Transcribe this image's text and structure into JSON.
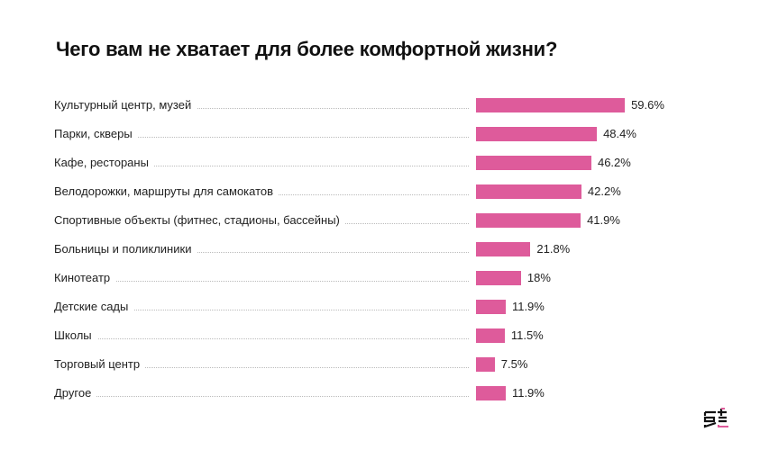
{
  "chart_data": {
    "type": "bar",
    "orientation": "horizontal",
    "title": "Чего вам не хватает для более комфортной жизни?",
    "categories": [
      "Культурный центр, музей",
      "Парки, скверы",
      "Кафе, рестораны",
      "Велодорожки, маршруты для самокатов",
      "Спортивные объекты (фитнес, стадионы, бассейны)",
      "Больницы и поликлиники",
      "Кинотеатр",
      "Детские сады",
      "Школы",
      "Торговый центр",
      "Другое"
    ],
    "values": [
      59.6,
      48.4,
      46.2,
      42.2,
      41.9,
      21.8,
      18,
      11.9,
      11.5,
      7.5,
      11.9
    ],
    "value_labels": [
      "59.6%",
      "48.4%",
      "46.2%",
      "42.2%",
      "41.9%",
      "21.8%",
      "18%",
      "11.9%",
      "11.5%",
      "7.5%",
      "11.9%"
    ],
    "unit": "%",
    "bar_color": "#de5b9b",
    "grid": false
  }
}
